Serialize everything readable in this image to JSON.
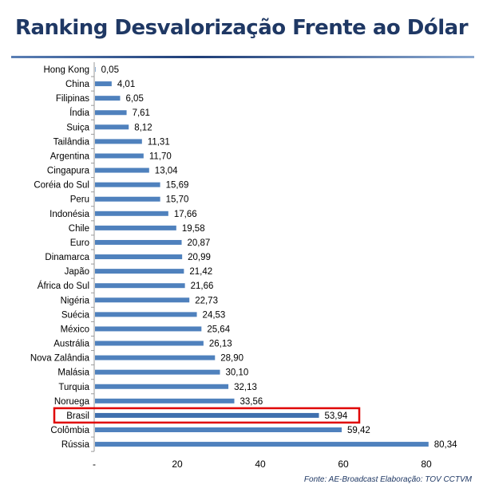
{
  "title": "Ranking Desvalorização Frente ao Dólar",
  "source": "Fonte: AE-Broadcast  Elaboração: TOV CCTVM",
  "colors": {
    "bar": "#4f81bd",
    "highlight": "#e00000",
    "title": "#1f3864"
  },
  "chart_data": {
    "type": "bar",
    "orientation": "horizontal",
    "title": "Ranking Desvalorização Frente ao Dólar",
    "categories": [
      "Hong Kong",
      "China",
      "Filipinas",
      "Índia",
      "Suiça",
      "Tailândia",
      "Argentina",
      "Cingapura",
      "Coréia do Sul",
      "Peru",
      "Indonésia",
      "Chile",
      "Euro",
      "Dinamarca",
      "Japão",
      "África do Sul",
      "Nigéria",
      "Suécia",
      "México",
      "Austrália",
      "Nova Zalândia",
      "Malásia",
      "Turquia",
      "Noruega",
      "Brasil",
      "Colômbia",
      "Rússia"
    ],
    "values": [
      0.05,
      4.01,
      6.05,
      7.61,
      8.12,
      11.31,
      11.7,
      13.04,
      15.69,
      15.7,
      17.66,
      19.58,
      20.87,
      20.99,
      21.42,
      21.66,
      22.73,
      24.53,
      25.64,
      26.13,
      28.9,
      30.1,
      32.13,
      33.56,
      53.94,
      59.42,
      80.34
    ],
    "value_labels": [
      "0,05",
      "4,01",
      "6,05",
      "7,61",
      "8,12",
      "11,31",
      "11,70",
      "13,04",
      "15,69",
      "15,70",
      "17,66",
      "19,58",
      "20,87",
      "20,99",
      "21,42",
      "21,66",
      "22,73",
      "24,53",
      "25,64",
      "26,13",
      "28,90",
      "30,10",
      "32,13",
      "33,56",
      "53,94",
      "59,42",
      "80,34"
    ],
    "x_ticks": [
      "-",
      "20",
      "40",
      "60",
      "80"
    ],
    "xlim": [
      0,
      90
    ],
    "xlabel": "",
    "ylabel": "",
    "grid": false,
    "highlight": "Brasil"
  }
}
